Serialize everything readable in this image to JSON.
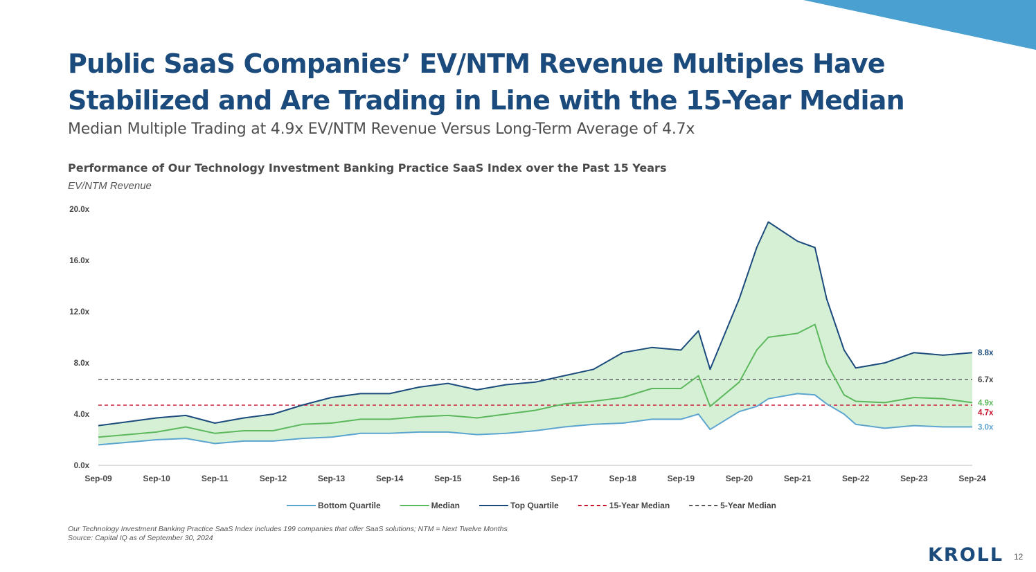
{
  "slide": {
    "title_line1": "Public SaaS Companies’ EV/NTM Revenue Multiples Have",
    "title_line2": "Stabilized and Are Trading in Line with the 15-Year Median",
    "subtitle": "Median Multiple Trading at 4.9x EV/NTM Revenue Versus Long-Term Average of 4.7x",
    "footnote1": "Our Technology Investment Banking Practice SaaS Index includes 199 companies that offer SaaS solutions; NTM = Next Twelve Months",
    "footnote2": "Source: Capital IQ as of September 30, 2024",
    "logo": "KROLL",
    "page_number": "12",
    "accent_color": "#4aa0d0"
  },
  "chart_data": {
    "type": "line",
    "title": "Performance of Our Technology Investment Banking Practice SaaS Index over the Past 15 Years",
    "ylabel": "EV/NTM Revenue",
    "ylim": [
      0,
      20
    ],
    "yticks": [
      "0.0x",
      "4.0x",
      "8.0x",
      "12.0x",
      "16.0x",
      "20.0x"
    ],
    "ytick_values": [
      0,
      4,
      8,
      12,
      16,
      20
    ],
    "xticks": [
      "Sep-09",
      "Sep-10",
      "Sep-11",
      "Sep-12",
      "Sep-13",
      "Sep-14",
      "Sep-15",
      "Sep-16",
      "Sep-17",
      "Sep-18",
      "Sep-19",
      "Sep-20",
      "Sep-21",
      "Sep-22",
      "Sep-23",
      "Sep-24"
    ],
    "x": [
      0,
      0.5,
      1,
      1.5,
      2,
      2.5,
      3,
      3.5,
      4,
      4.5,
      5,
      5.5,
      6,
      6.5,
      7,
      7.5,
      8,
      8.5,
      9,
      9.5,
      10,
      10.3,
      10.5,
      11,
      11.3,
      11.5,
      12,
      12.3,
      12.5,
      12.8,
      13,
      13.5,
      14,
      14.5,
      15
    ],
    "series": [
      {
        "name": "Bottom Quartile",
        "color": "#5ba4cf",
        "values": [
          1.6,
          1.8,
          2.0,
          2.1,
          1.7,
          1.9,
          1.9,
          2.1,
          2.2,
          2.5,
          2.5,
          2.6,
          2.6,
          2.4,
          2.5,
          2.7,
          3.0,
          3.2,
          3.3,
          3.6,
          3.6,
          4.0,
          2.8,
          4.2,
          4.6,
          5.2,
          5.6,
          5.5,
          4.8,
          4.0,
          3.2,
          2.9,
          3.1,
          3.0,
          3.0
        ]
      },
      {
        "name": "Median",
        "color": "#5cb85c",
        "values": [
          2.2,
          2.4,
          2.6,
          3.0,
          2.5,
          2.7,
          2.7,
          3.2,
          3.3,
          3.6,
          3.6,
          3.8,
          3.9,
          3.7,
          4.0,
          4.3,
          4.8,
          5.0,
          5.3,
          6.0,
          6.0,
          7.0,
          4.6,
          6.5,
          9.0,
          10.0,
          10.3,
          11.0,
          8.0,
          5.5,
          5.0,
          4.9,
          5.3,
          5.2,
          4.9
        ]
      },
      {
        "name": "Top Quartile",
        "color": "#1b4a7c",
        "values": [
          3.1,
          3.4,
          3.7,
          3.9,
          3.3,
          3.7,
          4.0,
          4.7,
          5.3,
          5.6,
          5.6,
          6.1,
          6.4,
          5.9,
          6.3,
          6.5,
          7.0,
          7.5,
          8.8,
          9.2,
          9.0,
          10.5,
          7.5,
          13.0,
          17.0,
          19.0,
          17.5,
          17.0,
          13.0,
          9.0,
          7.6,
          8.0,
          8.8,
          8.6,
          8.8
        ]
      }
    ],
    "reference_lines": [
      {
        "name": "15-Year Median",
        "value": 4.7,
        "color": "#c8102e",
        "label": "4.7x"
      },
      {
        "name": "5-Year Median",
        "value": 6.7,
        "color": "#555555",
        "label": "6.7x"
      }
    ],
    "end_labels": [
      {
        "label": "8.8x",
        "value": 8.8,
        "color": "#1b4a7c"
      },
      {
        "label": "6.7x",
        "value": 6.7,
        "color": "#444444"
      },
      {
        "label": "4.9x",
        "value": 4.9,
        "color": "#5cb85c"
      },
      {
        "label": "4.7x",
        "value": 4.7,
        "color": "#c8102e"
      },
      {
        "label": "3.0x",
        "value": 3.0,
        "color": "#5ba4cf"
      }
    ],
    "legend": {
      "position": "bottom",
      "items": [
        {
          "label": "Bottom Quartile",
          "color": "#5ba4cf",
          "dashed": false
        },
        {
          "label": "Median",
          "color": "#5cb85c",
          "dashed": false
        },
        {
          "label": "Top Quartile",
          "color": "#1b4a7c",
          "dashed": false
        },
        {
          "label": "15-Year Median",
          "color": "#c8102e",
          "dashed": true
        },
        {
          "label": "5-Year Median",
          "color": "#555555",
          "dashed": true
        }
      ]
    },
    "fill_between": {
      "lower": "Bottom Quartile",
      "upper": "Top Quartile",
      "color": "#d6f0d6"
    },
    "grid": false
  }
}
